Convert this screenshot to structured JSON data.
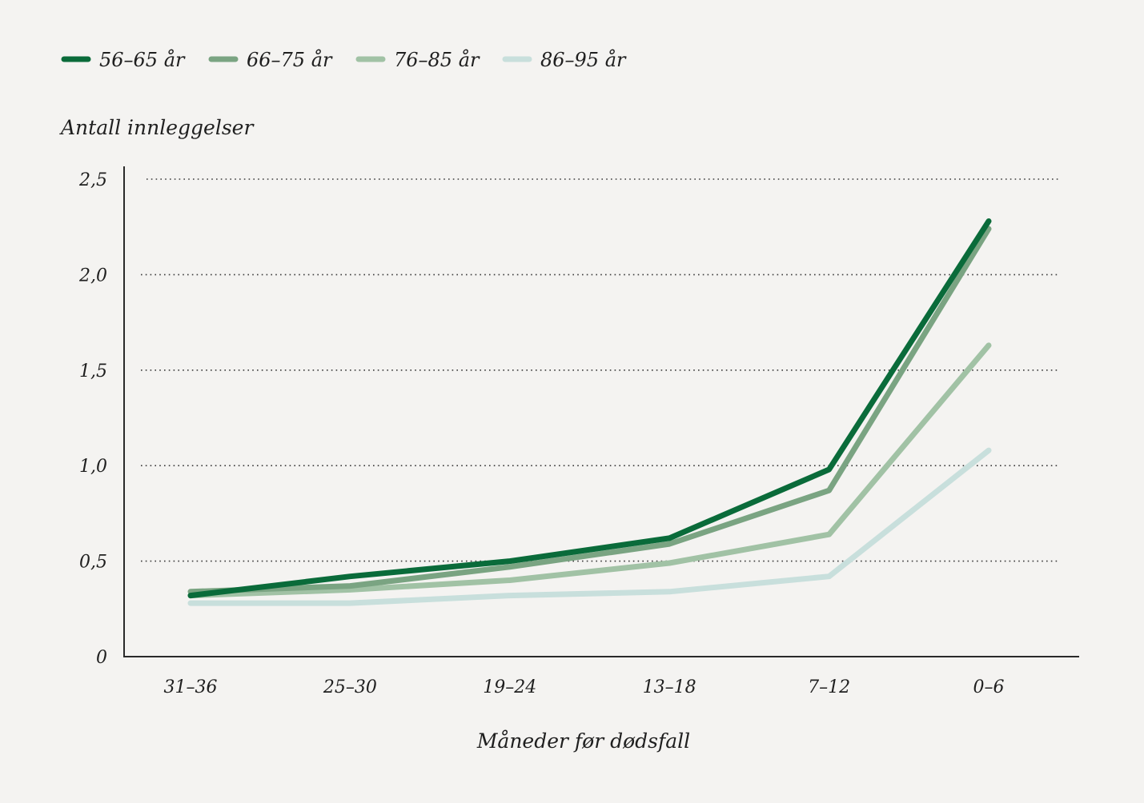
{
  "chart_data": {
    "type": "line",
    "categories": [
      "31–36",
      "25–30",
      "19–24",
      "13–18",
      "7–12",
      "0–6"
    ],
    "series": [
      {
        "name": "56–65 år",
        "color": "#0a6b3a",
        "values": [
          0.32,
          0.42,
          0.5,
          0.62,
          0.98,
          2.28
        ]
      },
      {
        "name": "66–75 år",
        "color": "#7aa482",
        "values": [
          0.34,
          0.37,
          0.47,
          0.59,
          0.87,
          2.24
        ]
      },
      {
        "name": "76–85 år",
        "color": "#a1c2a5",
        "values": [
          0.32,
          0.35,
          0.4,
          0.49,
          0.64,
          1.63
        ]
      },
      {
        "name": "86–95 år",
        "color": "#c8dfdc",
        "values": [
          0.28,
          0.28,
          0.32,
          0.34,
          0.42,
          1.08
        ]
      }
    ],
    "ylabel": "Antall innleggelser",
    "xlabel": "Måneder før dødsfall",
    "ylim": [
      0,
      2.5
    ],
    "yticks": [
      0,
      0.5,
      1.0,
      1.5,
      2.0,
      2.5
    ],
    "ytick_labels": [
      "0",
      "0,5",
      "1,0",
      "1,5",
      "2,0",
      "2,5"
    ],
    "grid": "horizontal dotted",
    "legend_position": "top-left"
  }
}
